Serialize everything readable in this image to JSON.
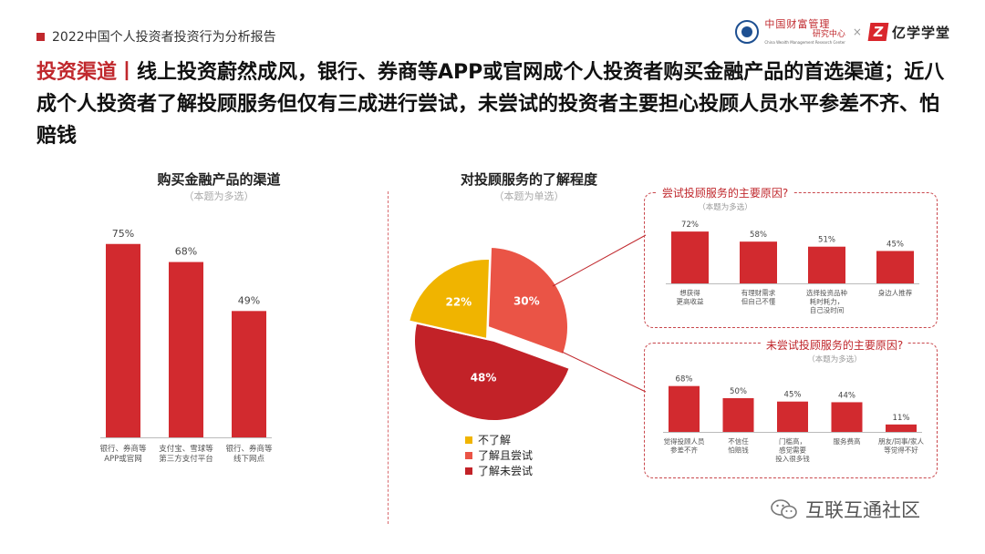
{
  "header": {
    "report_title": "2022中国个人投资者投资行为分析报告"
  },
  "logos": {
    "logo1_line1": "中国财富管理",
    "logo1_line2": "研究中心",
    "logo1_en": "China Wealth Management Research Center",
    "separator": "×",
    "logo2_mark": "Z",
    "logo2_name": "亿学学堂"
  },
  "headline": {
    "keyword": "投资渠道",
    "separator": "丨",
    "text": "线上投资蔚然成风，银行、券商等APP或官网成个人投资者购买金融产品的首选渠道；近八成个人投资者了解投顾服务但仅有三成进行尝试，未尝试的投资者主要担心投顾人员水平参差不齐、怕赔钱"
  },
  "colors": {
    "accent": "#c0282d",
    "bar": "#d22a2f",
    "pie_orange": "#f0b400",
    "pie_salmon": "#ea5446",
    "pie_dark": "#c22228"
  },
  "watermark": {
    "text": "互联互通社区",
    "icon": "wechat-icon"
  },
  "chart_data": [
    {
      "id": "channels",
      "type": "bar",
      "title": "购买金融产品的渠道",
      "subtitle": "（本题为多选）",
      "categories": [
        [
          "银行、券商等",
          "APP或官网"
        ],
        [
          "支付宝、雪球等",
          "第三方支付平台"
        ],
        [
          "银行、券商等",
          "线下网点"
        ]
      ],
      "values": [
        75,
        68,
        49
      ],
      "value_labels": [
        "75%",
        "68%",
        "49%"
      ],
      "ylim": [
        0,
        100
      ]
    },
    {
      "id": "awareness",
      "type": "pie",
      "title": "对投顾服务的了解程度",
      "subtitle": "（本题为单选）",
      "slices": [
        {
          "name": "不了解",
          "value": 22,
          "label": "22%",
          "color": "#f0b400"
        },
        {
          "name": "了解且尝试",
          "value": 30,
          "label": "30%",
          "color": "#ea5446"
        },
        {
          "name": "了解未尝试",
          "value": 48,
          "label": "48%",
          "color": "#c22228"
        }
      ]
    },
    {
      "id": "tried",
      "type": "bar",
      "title": "尝试投顾服务的主要原因?",
      "subtitle": "（本题为多选）",
      "categories": [
        [
          "想获得",
          "更高收益"
        ],
        [
          "有理财需求",
          "但自己不懂"
        ],
        [
          "选择投资品种",
          "耗时耗力，",
          "自己没时间"
        ],
        [
          "身边人推荐"
        ]
      ],
      "values": [
        72,
        58,
        51,
        45
      ],
      "value_labels": [
        "72%",
        "58%",
        "51%",
        "45%"
      ],
      "ylim": [
        0,
        100
      ]
    },
    {
      "id": "not_tried",
      "type": "bar",
      "title": "未尝试投顾服务的主要原因?",
      "subtitle": "（本题为多选）",
      "categories": [
        [
          "觉得投顾人员",
          "参差不齐"
        ],
        [
          "不信任",
          "怕赔钱"
        ],
        [
          "门槛高，",
          "感觉需要",
          "投入很多钱"
        ],
        [
          "服务费高"
        ],
        [
          "朋友/同事/家人",
          "等觉得不好"
        ]
      ],
      "values": [
        68,
        50,
        45,
        44,
        11
      ],
      "value_labels": [
        "68%",
        "50%",
        "45%",
        "44%",
        "11%"
      ],
      "ylim": [
        0,
        100
      ]
    }
  ]
}
